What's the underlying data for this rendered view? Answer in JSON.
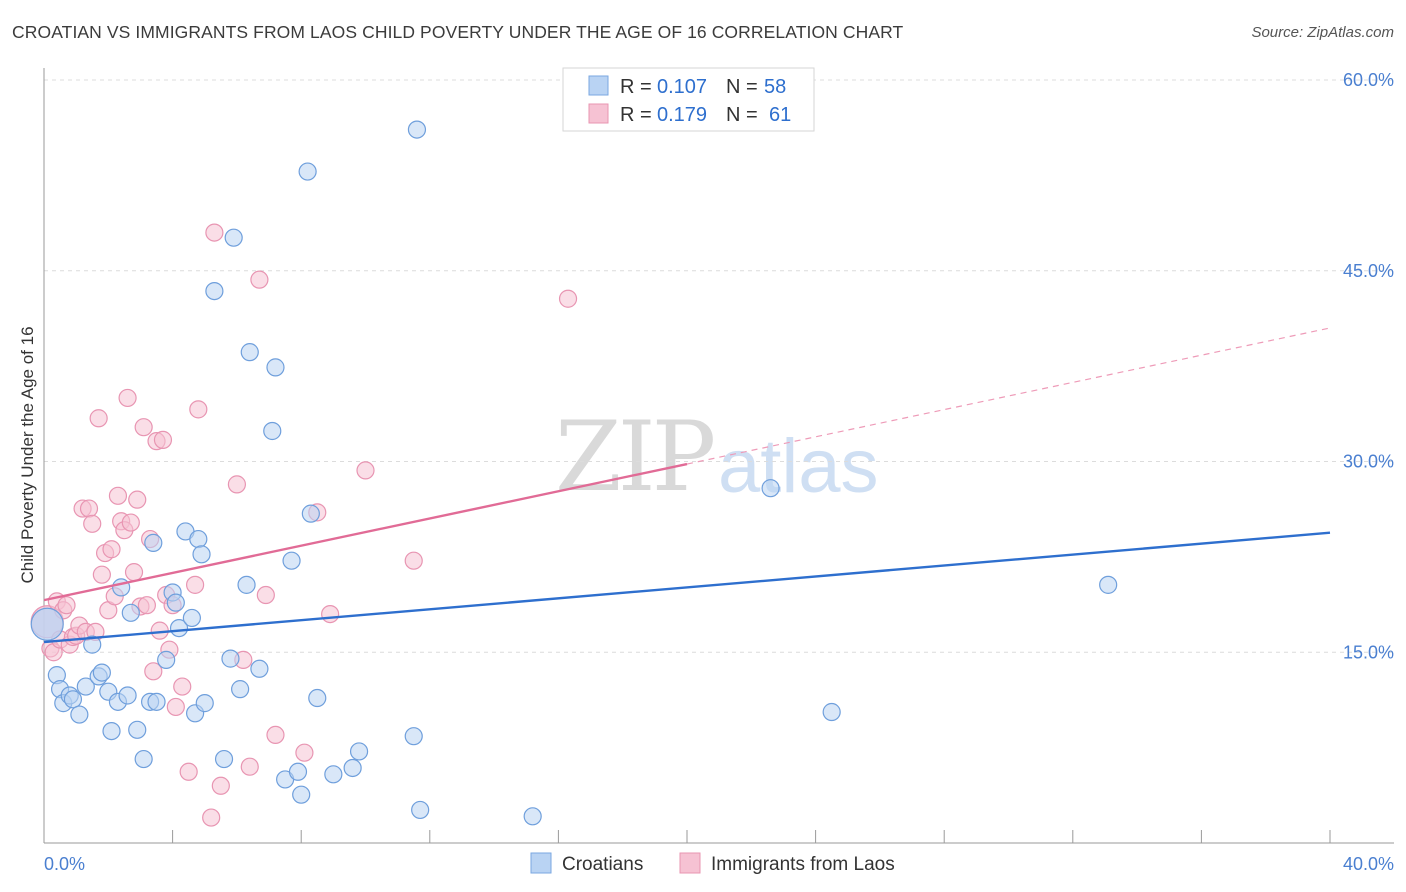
{
  "title": "CROATIAN VS IMMIGRANTS FROM LAOS CHILD POVERTY UNDER THE AGE OF 16 CORRELATION CHART",
  "source": "Source: ZipAtlas.com",
  "watermark": {
    "zip": "ZIP",
    "atlas": "atlas"
  },
  "colors": {
    "blue": "#4a86d8",
    "blue_fill": "#b9d3f3",
    "pink": "#e16b96",
    "pink_fill": "#f6c2d3",
    "axis_text": "#4a7fd0"
  },
  "legend": {
    "rows": [
      {
        "r_label": "R = ",
        "r_value": "0.107",
        "n_label": "N = ",
        "n_value": "58"
      },
      {
        "r_label": "R = ",
        "r_value": "0.179",
        "n_label": "N = ",
        "n_value": "61"
      }
    ]
  },
  "bottom_legend": [
    "Croatians",
    "Immigrants from Laos"
  ],
  "chart_data": {
    "type": "scatter",
    "title": "CROATIAN VS IMMIGRANTS FROM LAOS CHILD POVERTY UNDER THE AGE OF 16 CORRELATION CHART",
    "xlabel": "",
    "ylabel": "Child Poverty Under the Age of 16",
    "xlim": [
      0,
      40
    ],
    "ylim": [
      0,
      60
    ],
    "x_tick_labels": [
      "0.0%",
      "40.0%"
    ],
    "y_ticks": [
      15,
      30,
      45,
      60
    ],
    "y_tick_labels": [
      "15.0%",
      "30.0%",
      "45.0%",
      "60.0%"
    ],
    "grid": true,
    "series": [
      {
        "name": "Croatians",
        "r": 0.107,
        "n": 58,
        "trend": {
          "x": [
            0,
            40
          ],
          "y": [
            15.8,
            24.4
          ]
        },
        "points": [
          [
            0.1,
            17.2,
            "big"
          ],
          [
            0.4,
            13.2
          ],
          [
            0.5,
            12.1
          ],
          [
            0.6,
            11.0
          ],
          [
            0.8,
            11.6
          ],
          [
            0.9,
            11.3
          ],
          [
            1.1,
            10.1
          ],
          [
            1.3,
            12.3
          ],
          [
            1.5,
            15.6
          ],
          [
            1.7,
            13.1
          ],
          [
            1.8,
            13.4
          ],
          [
            2.0,
            11.9
          ],
          [
            2.1,
            8.8
          ],
          [
            2.3,
            11.1
          ],
          [
            2.4,
            20.1
          ],
          [
            2.6,
            11.6
          ],
          [
            2.7,
            18.1
          ],
          [
            2.9,
            8.9
          ],
          [
            3.1,
            6.6
          ],
          [
            3.3,
            11.1
          ],
          [
            3.4,
            23.6
          ],
          [
            3.5,
            11.1
          ],
          [
            3.8,
            14.4
          ],
          [
            4.0,
            19.7
          ],
          [
            4.1,
            18.9
          ],
          [
            4.2,
            16.9
          ],
          [
            4.4,
            24.5
          ],
          [
            4.6,
            17.7
          ],
          [
            4.7,
            10.2
          ],
          [
            4.8,
            23.9
          ],
          [
            4.9,
            22.7
          ],
          [
            5.0,
            11.0
          ],
          [
            5.3,
            43.4
          ],
          [
            5.6,
            6.6
          ],
          [
            5.8,
            14.5
          ],
          [
            5.9,
            47.6
          ],
          [
            6.1,
            12.1
          ],
          [
            6.3,
            20.3
          ],
          [
            6.4,
            38.6
          ],
          [
            6.7,
            13.7
          ],
          [
            7.1,
            32.4
          ],
          [
            7.2,
            37.4
          ],
          [
            7.5,
            5.0
          ],
          [
            7.7,
            22.2
          ],
          [
            7.9,
            5.6
          ],
          [
            8.0,
            3.8
          ],
          [
            8.2,
            52.8
          ],
          [
            8.3,
            25.9
          ],
          [
            8.5,
            11.4
          ],
          [
            9.0,
            5.4
          ],
          [
            9.6,
            5.9
          ],
          [
            9.8,
            7.2
          ],
          [
            11.5,
            8.4
          ],
          [
            11.7,
            2.6
          ],
          [
            11.6,
            56.1
          ],
          [
            15.2,
            2.1
          ],
          [
            22.6,
            27.9
          ],
          [
            24.5,
            10.3
          ],
          [
            33.1,
            20.3
          ]
        ]
      },
      {
        "name": "Immigrants from Laos",
        "r": 0.179,
        "n": 61,
        "trend_solid": {
          "x": [
            0,
            20
          ],
          "y": [
            19.1,
            29.8
          ]
        },
        "trend_dashed": {
          "x": [
            20,
            40
          ],
          "y": [
            29.8,
            40.5
          ]
        },
        "points": [
          [
            0.1,
            17.4,
            "big"
          ],
          [
            0.2,
            15.3
          ],
          [
            0.3,
            15.0
          ],
          [
            0.4,
            19.0
          ],
          [
            0.5,
            16.0
          ],
          [
            0.6,
            18.3
          ],
          [
            0.7,
            18.7
          ],
          [
            0.8,
            15.6
          ],
          [
            0.9,
            16.2
          ],
          [
            1.0,
            16.3
          ],
          [
            1.1,
            17.1
          ],
          [
            1.2,
            26.3
          ],
          [
            1.3,
            16.6
          ],
          [
            1.4,
            26.3
          ],
          [
            1.5,
            25.1
          ],
          [
            1.6,
            16.6
          ],
          [
            1.7,
            33.4
          ],
          [
            1.8,
            21.1
          ],
          [
            1.9,
            22.8
          ],
          [
            2.0,
            18.3
          ],
          [
            2.1,
            23.1
          ],
          [
            2.2,
            19.4
          ],
          [
            2.3,
            27.3
          ],
          [
            2.4,
            25.3
          ],
          [
            2.5,
            24.6
          ],
          [
            2.6,
            35.0
          ],
          [
            2.7,
            25.2
          ],
          [
            2.8,
            21.3
          ],
          [
            2.9,
            27.0
          ],
          [
            3.0,
            18.6
          ],
          [
            3.1,
            32.7
          ],
          [
            3.2,
            18.7
          ],
          [
            3.3,
            23.9
          ],
          [
            3.4,
            13.5
          ],
          [
            3.5,
            31.6
          ],
          [
            3.6,
            16.7
          ],
          [
            3.7,
            31.7
          ],
          [
            3.8,
            19.5
          ],
          [
            3.9,
            15.2
          ],
          [
            4.0,
            18.7
          ],
          [
            4.1,
            10.7
          ],
          [
            4.3,
            12.3
          ],
          [
            4.5,
            5.6
          ],
          [
            4.7,
            20.3
          ],
          [
            4.8,
            34.1
          ],
          [
            5.2,
            2.0
          ],
          [
            5.3,
            48.0
          ],
          [
            5.5,
            4.5
          ],
          [
            6.0,
            28.2
          ],
          [
            6.2,
            14.4
          ],
          [
            6.4,
            6.0
          ],
          [
            6.7,
            44.3
          ],
          [
            6.9,
            19.5
          ],
          [
            7.2,
            8.5
          ],
          [
            8.1,
            7.1
          ],
          [
            8.5,
            26.0
          ],
          [
            8.9,
            18.0
          ],
          [
            10.0,
            29.3
          ],
          [
            11.5,
            22.2
          ],
          [
            16.3,
            42.8
          ]
        ]
      }
    ]
  }
}
